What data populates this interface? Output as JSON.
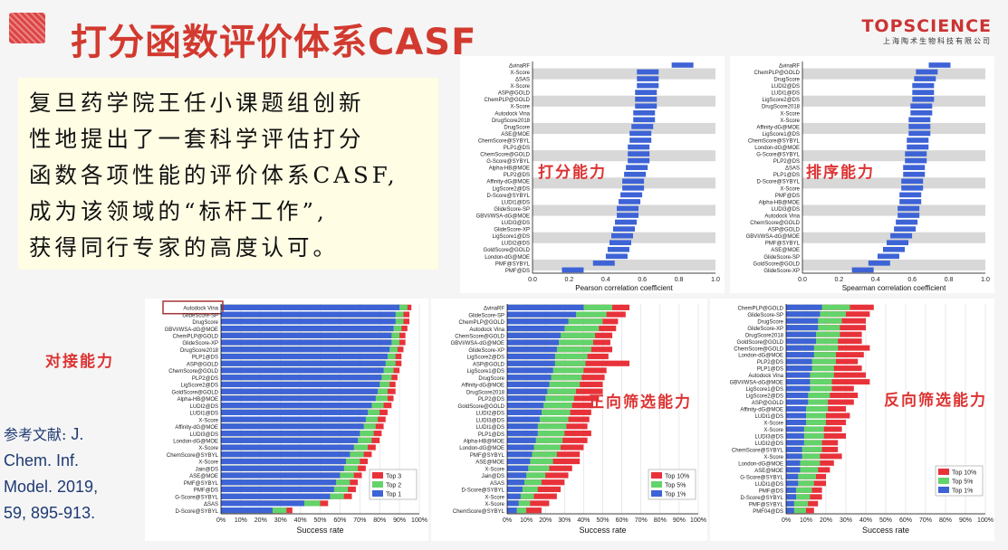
{
  "title": "打分函数评价体系CASF",
  "brand": {
    "name": "TOPSCIENCE",
    "subtitle": "上海陶术生物科技有限公司"
  },
  "intro_text": "复旦药学院王任小课题组创新\n性地提出了一套科学评估打分\n函数各项性能的评价体系CASF,\n成为该领域的“标杆工作”,\n获得同行专家的高度认可。",
  "labels": {
    "scoring": "打分能力",
    "ranking": "排序能力",
    "docking": "对接能力",
    "forward": "正向筛选能力",
    "reverse": "反向筛选能力"
  },
  "reference": {
    "prefix": "参考文献:",
    "lines": [
      "J.",
      "Chem. Inf.",
      "Model. 2019,",
      "59, 895-913."
    ]
  },
  "colors": {
    "blue": "#3d63d6",
    "green": "#63d36b",
    "red": "#e8323a",
    "title_red": "#d23a2f",
    "gray_band": "#d8d8d8"
  },
  "chart_data": [
    {
      "type": "bar",
      "xlabel": "Pearson correlation coefficient",
      "xlim": [
        0,
        1
      ],
      "x_ticks": [
        "0.0",
        "0.2",
        "0.4",
        "0.6",
        "0.8",
        "1.0"
      ],
      "categories": [
        "ΔvinaRF",
        "X-Score",
        "ΔSAS",
        "X-Score",
        "ASP@GOLD",
        "ChemPLP@GOLD",
        "X-Score",
        "Autodock Vina",
        "DrugScore2018",
        "DrugScore",
        "ASE@MOE",
        "ChemScore@SYBYL",
        "PLP1@DS",
        "ChemScore@GOLD",
        "G-Score@SYBYL",
        "Alpha-HB@MOE",
        "PLP2@DS",
        "Affinity-dG@MOE",
        "LigScore2@DS",
        "D-Score@SYBYL",
        "LUDI1@DS",
        "GlideScore-SP",
        "GBVI/WSA-dG@MOE",
        "LUDI3@DS",
        "GlideScore-XP",
        "LigScore1@DS",
        "LUDI2@DS",
        "GoldScore@GOLD",
        "London-dG@MOE",
        "PMF@SYBYL",
        "PMF@DS"
      ],
      "values": [
        0.82,
        0.63,
        0.63,
        0.63,
        0.62,
        0.62,
        0.62,
        0.61,
        0.61,
        0.6,
        0.59,
        0.59,
        0.58,
        0.58,
        0.58,
        0.57,
        0.56,
        0.55,
        0.55,
        0.54,
        0.53,
        0.52,
        0.52,
        0.51,
        0.5,
        0.49,
        0.48,
        0.47,
        0.46,
        0.39,
        0.22
      ]
    },
    {
      "type": "bar",
      "xlabel": "Spearman correlation coefficient",
      "xlim": [
        0,
        1
      ],
      "x_ticks": [
        "0.0",
        "0.2",
        "0.4",
        "0.6",
        "0.8",
        "1.0"
      ],
      "categories": [
        "ΔvinaRF",
        "ChemPLP@GOLD",
        "DrugScore",
        "LUDI2@DS",
        "LUDI1@DS",
        "LigScore2@DS",
        "DrugScore2018",
        "X-Score",
        "X-Score",
        "Affinity-dG@MOE",
        "LigScore1@DS",
        "ChemScore@SYBYL",
        "London-dG@MOE",
        "G-Score@SYBYL",
        "PLP2@DS",
        "ΔSAS",
        "PLP1@DS",
        "D-Score@SYBYL",
        "X-Score",
        "PMF@DS",
        "Alpha-HB@MOE",
        "LUDI3@DS",
        "Autodock Vina",
        "ChemScore@GOLD",
        "ASP@GOLD",
        "GBVI/WSA-dG@MOE",
        "PMF@SYBYL",
        "ASE@MOE",
        "GlideScore-SP",
        "GoldScore@GOLD",
        "GlideScore-XP"
      ],
      "values": [
        0.75,
        0.68,
        0.67,
        0.66,
        0.66,
        0.66,
        0.65,
        0.65,
        0.64,
        0.64,
        0.64,
        0.63,
        0.63,
        0.62,
        0.62,
        0.61,
        0.61,
        0.6,
        0.6,
        0.59,
        0.59,
        0.58,
        0.58,
        0.57,
        0.56,
        0.54,
        0.52,
        0.5,
        0.47,
        0.42,
        0.33
      ]
    },
    {
      "type": "bar",
      "xlabel": "Success rate",
      "stacked": true,
      "xlim": [
        0,
        100
      ],
      "x_ticks": [
        "0%",
        "10%",
        "20%",
        "30%",
        "40%",
        "50%",
        "60%",
        "70%",
        "80%",
        "90%",
        "100%"
      ],
      "series": [
        {
          "name": "Top 1"
        },
        {
          "name": "Top 2"
        },
        {
          "name": "Top 3"
        }
      ],
      "highlight": "Autodock Vina",
      "categories": [
        "Autodock Vina",
        "GlideScore-SP",
        "DrugScore",
        "GBVI/WSA-dG@MOE",
        "ChemPLP@GOLD",
        "GlideScore-XP",
        "DrugScore2018",
        "PLP1@DS",
        "ASP@GOLD",
        "ChemScore@GOLD",
        "PLP2@DS",
        "LigScore2@DS",
        "GoldScore@GOLD",
        "Alpha-HB@MOE",
        "LUDI2@DS",
        "LUDI1@DS",
        "X-Score",
        "Affinity-dG@MOE",
        "LUDI3@DS",
        "London-dG@MOE",
        "X-Score",
        "ChemScore@SYBYL",
        "X-Score",
        "Jain@DS",
        "ASE@MOE",
        "PMF@SYBYL",
        "PMF@DS",
        "G-Score@SYBYL",
        "ΔSAS",
        "D-Score@SYBYL"
      ],
      "top1": [
        90,
        88,
        88,
        87,
        86,
        86,
        85,
        84,
        83,
        82,
        81,
        80,
        79,
        78,
        76,
        74,
        73,
        72,
        70,
        69,
        67,
        65,
        63,
        62,
        60,
        58,
        57,
        55,
        42,
        26
      ],
      "top2": [
        94,
        92,
        92,
        91,
        90,
        90,
        89,
        88,
        88,
        87,
        86,
        85,
        84,
        84,
        82,
        80,
        79,
        78,
        77,
        76,
        74,
        72,
        70,
        69,
        67,
        65,
        64,
        62,
        50,
        33
      ],
      "top3": [
        96,
        95,
        95,
        94,
        93,
        93,
        92,
        91,
        91,
        90,
        89,
        88,
        88,
        87,
        86,
        84,
        83,
        82,
        81,
        80,
        78,
        76,
        74,
        73,
        71,
        69,
        68,
        66,
        54,
        36
      ]
    },
    {
      "type": "bar",
      "xlabel": "Success rate",
      "stacked": true,
      "xlim": [
        0,
        100
      ],
      "x_ticks": [
        "0%",
        "10%",
        "20%",
        "30%",
        "40%",
        "50%",
        "60%",
        "70%",
        "80%",
        "90%",
        "100%"
      ],
      "series": [
        {
          "name": "Top 10%"
        },
        {
          "name": "Top 5%"
        },
        {
          "name": "Top 1%"
        }
      ],
      "categories": [
        "ΔvinaRF",
        "GlideScore-SP",
        "ChemPLP@GOLD",
        "Autodock Vina",
        "ChemScore@GOLD",
        "GBVI/WSA-dG@MOE",
        "GlideScore-XP",
        "LigScore2@DS",
        "ASP@GOLD",
        "LigScore1@DS",
        "DrugScore",
        "Affinity-dG@MOE",
        "DrugScore2018",
        "PLP2@DS",
        "GoldScore@GOLD",
        "LUDI2@DS",
        "LUDI3@DS",
        "LUDI1@DS",
        "PLP1@DS",
        "Alpha-HB@MOE",
        "London-dG@MOE",
        "PMF@SYBYL",
        "ASE@MOE",
        "X-Score",
        "Jain@DS",
        "ASAS",
        "D-Score@SYBYL",
        "X-Score",
        "X-Score",
        "ChemScore@SYBYL"
      ],
      "top1": [
        40,
        36,
        32,
        30,
        28,
        27,
        26,
        25,
        25,
        24,
        23,
        22,
        21,
        20,
        19,
        18,
        17,
        16,
        16,
        15,
        14,
        13,
        12,
        11,
        10,
        9,
        8,
        7,
        6,
        5
      ],
      "top5": [
        55,
        52,
        50,
        48,
        46,
        45,
        44,
        42,
        41,
        40,
        39,
        38,
        36,
        35,
        34,
        33,
        32,
        31,
        30,
        29,
        28,
        26,
        24,
        22,
        20,
        18,
        16,
        14,
        12,
        10
      ],
      "top10": [
        64,
        62,
        58,
        57,
        55,
        54,
        55,
        53,
        64,
        52,
        51,
        50,
        50,
        48,
        45,
        44,
        43,
        42,
        44,
        42,
        40,
        38,
        38,
        34,
        32,
        30,
        28,
        26,
        22,
        18
      ]
    },
    {
      "type": "bar",
      "xlabel": "Success rate",
      "stacked": true,
      "xlim": [
        0,
        100
      ],
      "x_ticks": [
        "0%",
        "10%",
        "20%",
        "30%",
        "40%",
        "50%",
        "60%",
        "70%",
        "80%",
        "90%",
        "100%"
      ],
      "series": [
        {
          "name": "Top 10%"
        },
        {
          "name": "Top 5%"
        },
        {
          "name": "Top 1%"
        }
      ],
      "categories": [
        "ChemPLP@GOLD",
        "GlideScore-SP",
        "DrugScore",
        "GlideScore-XP",
        "DrugScore2018",
        "GoldScore@GOLD",
        "ChemScore@GOLD",
        "London-dG@MOE",
        "PLP2@DS",
        "PLP1@DS",
        "Autodock Vina",
        "GBVI/WSA-dG@MOE",
        "LigScore1@DS",
        "LigScore2@DS",
        "ASP@GOLD",
        "Affinity-dG@MOE",
        "LUDI1@DS",
        "X-Score",
        "X-Score",
        "LUDI3@DS",
        "LUDI2@DS",
        "ChemScore@SYBYL",
        "X-Score",
        "London-dG@MOE",
        "ASE@MOE",
        "G-Score@SYBYL",
        "LUDI1@DS",
        "PMF@DS",
        "D-Score@SYBYL",
        "PMF@SYBYL",
        "PMF04@DS"
      ],
      "top1": [
        18,
        17,
        16,
        16,
        15,
        15,
        14,
        14,
        13,
        13,
        12,
        12,
        12,
        11,
        11,
        10,
        10,
        10,
        9,
        9,
        9,
        8,
        8,
        7,
        7,
        6,
        6,
        5,
        5,
        4,
        4
      ],
      "top5": [
        32,
        30,
        28,
        27,
        27,
        26,
        26,
        25,
        25,
        24,
        24,
        23,
        23,
        22,
        21,
        21,
        20,
        20,
        19,
        19,
        18,
        18,
        17,
        17,
        16,
        15,
        14,
        13,
        12,
        11,
        10
      ],
      "top10": [
        44,
        42,
        40,
        40,
        38,
        38,
        42,
        39,
        36,
        38,
        40,
        42,
        34,
        36,
        34,
        30,
        32,
        30,
        28,
        30,
        26,
        26,
        28,
        24,
        22,
        20,
        20,
        18,
        18,
        16,
        14
      ]
    }
  ]
}
